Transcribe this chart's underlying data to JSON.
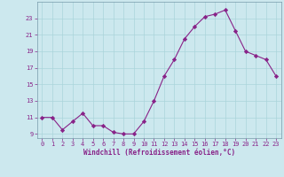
{
  "x": [
    0,
    1,
    2,
    3,
    4,
    5,
    6,
    7,
    8,
    9,
    10,
    11,
    12,
    13,
    14,
    15,
    16,
    17,
    18,
    19,
    20,
    21,
    22,
    23
  ],
  "y": [
    11,
    11,
    9.5,
    10.5,
    11.5,
    10,
    10,
    9.2,
    9,
    9,
    10.5,
    13,
    16,
    18,
    20.5,
    22,
    23.2,
    23.5,
    24,
    21.5,
    19,
    18.5,
    18,
    16
  ],
  "line_color": "#882288",
  "marker": "D",
  "marker_size": 2.2,
  "bg_color": "#cce8ee",
  "grid_color": "#aad4da",
  "xlabel": "Windchill (Refroidissement éolien,°C)",
  "xlabel_color": "#882288",
  "tick_color": "#882288",
  "ylim": [
    8.5,
    25
  ],
  "xlim": [
    -0.5,
    23.5
  ],
  "yticks": [
    9,
    11,
    13,
    15,
    17,
    19,
    21,
    23
  ],
  "xticks": [
    0,
    1,
    2,
    3,
    4,
    5,
    6,
    7,
    8,
    9,
    10,
    11,
    12,
    13,
    14,
    15,
    16,
    17,
    18,
    19,
    20,
    21,
    22,
    23
  ],
  "font_family": "monospace",
  "tick_fontsize": 5.0,
  "xlabel_fontsize": 5.5
}
